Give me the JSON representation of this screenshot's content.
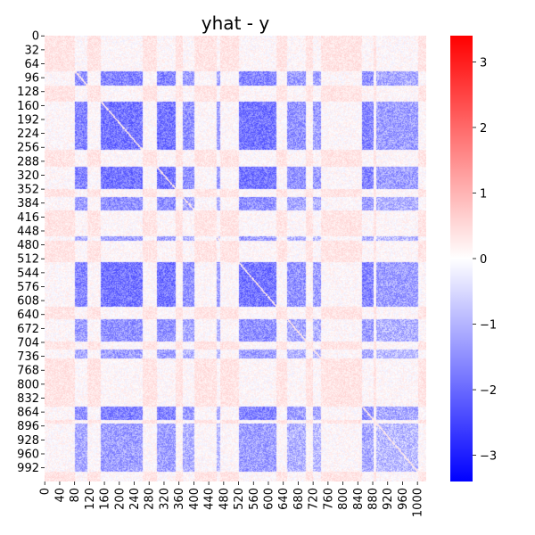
{
  "chart_data": {
    "type": "heatmap",
    "title": "yhat - y",
    "xlabel": "",
    "ylabel": "",
    "n": 1024,
    "x_ticks": [
      0,
      40,
      80,
      120,
      160,
      200,
      240,
      280,
      320,
      360,
      400,
      440,
      480,
      520,
      560,
      600,
      640,
      680,
      720,
      760,
      800,
      840,
      880,
      920,
      960,
      1000
    ],
    "y_ticks": [
      0,
      32,
      64,
      96,
      128,
      160,
      192,
      224,
      256,
      288,
      320,
      352,
      384,
      416,
      448,
      480,
      512,
      544,
      576,
      608,
      640,
      672,
      704,
      736,
      768,
      800,
      832,
      864,
      896,
      928,
      960,
      992
    ],
    "colorbar": {
      "vmin": -3.4,
      "vmax": 3.4,
      "ticks": [
        3,
        2,
        1,
        0,
        -1,
        -2,
        -3
      ],
      "colormap": "bwr",
      "colors": {
        "low": "#0000ff",
        "mid": "#ffffff",
        "high": "#ff0000"
      }
    },
    "block_structure": {
      "description_values": "approximate mean of yhat - y within index bands",
      "background_value": 0.35,
      "bands": [
        {
          "range": [
            80,
            112
          ],
          "strength": 0.9
        },
        {
          "range": [
            150,
            260
          ],
          "strength": 1.0
        },
        {
          "range": [
            300,
            350
          ],
          "strength": 1.0
        },
        {
          "range": [
            370,
            400
          ],
          "strength": 0.8
        },
        {
          "range": [
            460,
            470
          ],
          "strength": 0.7
        },
        {
          "range": [
            520,
            620
          ],
          "strength": 1.0
        },
        {
          "range": [
            650,
            700
          ],
          "strength": 0.8
        },
        {
          "range": [
            720,
            740
          ],
          "strength": 0.7
        },
        {
          "range": [
            850,
            880
          ],
          "strength": 0.9
        },
        {
          "range": [
            890,
            1000
          ],
          "strength": 0.7
        }
      ],
      "block_value": -1.8
    }
  }
}
